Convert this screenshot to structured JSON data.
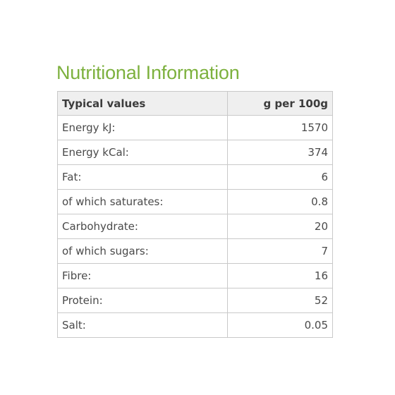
{
  "title": "Nutritional Information",
  "table": {
    "header": {
      "name": "Typical values",
      "value": "g per 100g"
    },
    "rows": [
      {
        "name": "Energy kJ:",
        "value": "1570"
      },
      {
        "name": "Energy kCal:",
        "value": "374"
      },
      {
        "name": "Fat:",
        "value": "6"
      },
      {
        "name": "of which saturates:",
        "value": "0.8"
      },
      {
        "name": "Carbohydrate:",
        "value": "20"
      },
      {
        "name": "of which sugars:",
        "value": "7"
      },
      {
        "name": "Fibre:",
        "value": "16"
      },
      {
        "name": "Protein:",
        "value": "52"
      },
      {
        "name": "Salt:",
        "value": "0.05"
      }
    ]
  },
  "colors": {
    "title": "#7db13e",
    "header_bg": "#efefef",
    "border": "#c9c9c9",
    "text": "#4a4a4a"
  }
}
